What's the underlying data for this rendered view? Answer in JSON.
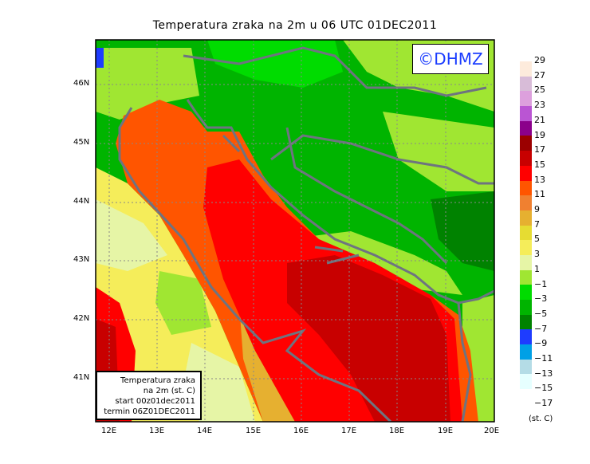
{
  "title": "Temperatura zraka na 2m u 06 UTC 01DEC2011",
  "logo": "©DHMZ",
  "info_box": [
    "Temperatura zraka",
    "na 2m (st. C)",
    "start 00z01dec2011",
    "termin 06Z01DEC2011"
  ],
  "lat_ticks": [
    "46N",
    "45N",
    "44N",
    "43N",
    "42N",
    "41N"
  ],
  "lon_ticks": [
    "12E",
    "13E",
    "14E",
    "15E",
    "16E",
    "17E",
    "18E",
    "19E",
    "20E"
  ],
  "legend": {
    "labels": [
      "29",
      "27",
      "25",
      "23",
      "21",
      "19",
      "17",
      "15",
      "13",
      "11",
      "9",
      "7",
      "5",
      "3",
      "1",
      "−1",
      "−3",
      "−5",
      "−7",
      "−9",
      "−11",
      "−13",
      "−15",
      "−17"
    ],
    "colors": [
      "#fdebdc",
      "#d8bcd8",
      "#dda0dd",
      "#ba55d3",
      "#8b008b",
      "#9b0000",
      "#c80000",
      "#ff0000",
      "#ff5500",
      "#f08030",
      "#e6b030",
      "#e6dc32",
      "#f5ed5a",
      "#e6f5a6",
      "#a0e632",
      "#00dc00",
      "#00b400",
      "#008200",
      "#1e3cff",
      "#00a0e6",
      "#b4dce6",
      "#e6ffff"
    ],
    "unit": "(st. C)"
  }
}
